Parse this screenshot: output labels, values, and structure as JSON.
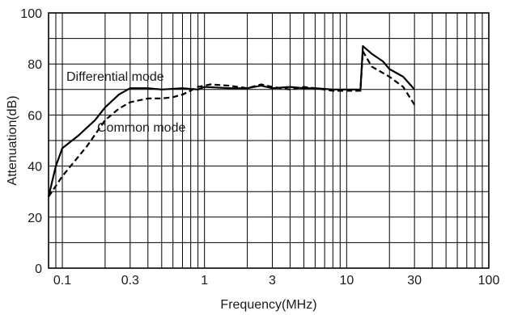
{
  "chart_data": {
    "type": "line",
    "xscale": "log",
    "xlim": [
      0.08,
      100
    ],
    "ylim": [
      0,
      100
    ],
    "xlabel": "Frequency(MHz)",
    "ylabel": "Attenuation(dB)",
    "grid": true,
    "x_ticks": [
      {
        "value": 0.1,
        "label": "0.1"
      },
      {
        "value": 0.3,
        "label": "0.3"
      },
      {
        "value": 1,
        "label": "1"
      },
      {
        "value": 3,
        "label": "3"
      },
      {
        "value": 10,
        "label": "10"
      },
      {
        "value": 30,
        "label": "30"
      },
      {
        "value": 100,
        "label": "100"
      }
    ],
    "y_ticks": [
      {
        "value": 0,
        "label": "0"
      },
      {
        "value": 20,
        "label": "20"
      },
      {
        "value": 40,
        "label": "40"
      },
      {
        "value": 60,
        "label": "60"
      },
      {
        "value": 80,
        "label": "80"
      },
      {
        "value": 100,
        "label": "100"
      }
    ],
    "series": [
      {
        "name": "Differential mode",
        "style": "solid",
        "color": "#000000",
        "points": [
          [
            0.08,
            28
          ],
          [
            0.09,
            40
          ],
          [
            0.1,
            47
          ],
          [
            0.13,
            52
          ],
          [
            0.17,
            58
          ],
          [
            0.2,
            63
          ],
          [
            0.25,
            68
          ],
          [
            0.3,
            70.5
          ],
          [
            0.4,
            70.5
          ],
          [
            0.5,
            70
          ],
          [
            0.7,
            70.5
          ],
          [
            0.9,
            70
          ],
          [
            1.0,
            71
          ],
          [
            1.5,
            70.5
          ],
          [
            2,
            70.5
          ],
          [
            2.5,
            71.5
          ],
          [
            3,
            70.5
          ],
          [
            4,
            71
          ],
          [
            5,
            70.5
          ],
          [
            6,
            70.5
          ],
          [
            8,
            70
          ],
          [
            12.5,
            70
          ],
          [
            13,
            87
          ],
          [
            15,
            84
          ],
          [
            18,
            81
          ],
          [
            20,
            78
          ],
          [
            25,
            75
          ],
          [
            30,
            70
          ]
        ]
      },
      {
        "name": "Common mode",
        "style": "dashed",
        "color": "#000000",
        "points": [
          [
            0.08,
            28
          ],
          [
            0.1,
            36
          ],
          [
            0.15,
            48
          ],
          [
            0.2,
            58
          ],
          [
            0.25,
            62.5
          ],
          [
            0.3,
            65
          ],
          [
            0.4,
            66.5
          ],
          [
            0.5,
            66.5
          ],
          [
            0.6,
            67
          ],
          [
            0.7,
            68
          ],
          [
            0.9,
            71
          ],
          [
            1.1,
            72
          ],
          [
            1.5,
            71.5
          ],
          [
            2,
            70.5
          ],
          [
            2.5,
            72
          ],
          [
            3,
            71
          ],
          [
            4,
            70
          ],
          [
            5,
            71
          ],
          [
            6,
            70.5
          ],
          [
            8,
            69.5
          ],
          [
            12.5,
            69.5
          ],
          [
            13,
            85
          ],
          [
            15,
            79
          ],
          [
            20,
            75
          ],
          [
            25,
            71
          ],
          [
            30,
            64
          ]
        ]
      }
    ]
  }
}
